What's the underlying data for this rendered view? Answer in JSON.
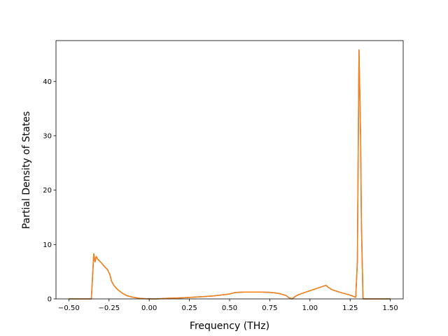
{
  "chart_data": {
    "type": "line",
    "title": "",
    "xlabel": "Frequency (THz)",
    "ylabel": "Partial Density of States",
    "xlim": [
      -0.58,
      1.58
    ],
    "ylim": [
      0,
      47.5
    ],
    "xticks": [
      -0.5,
      -0.25,
      0.0,
      0.25,
      0.5,
      0.75,
      1.0,
      1.25,
      1.5
    ],
    "xtick_labels": [
      "−0.50",
      "−0.25",
      "0.00",
      "0.25",
      "0.50",
      "0.75",
      "1.00",
      "1.25",
      "1.50"
    ],
    "yticks": [
      0,
      10,
      20,
      30,
      40
    ],
    "ytick_labels": [
      "0",
      "10",
      "20",
      "30",
      "40"
    ],
    "grid": false,
    "legend": "none",
    "series": [
      {
        "color": "#1f77b4",
        "x": [
          -0.5,
          -0.36,
          -0.345,
          -0.337,
          -0.33,
          -0.32,
          -0.3,
          -0.28,
          -0.26,
          -0.245,
          -0.235,
          -0.22,
          -0.2,
          -0.17,
          -0.14,
          -0.1,
          -0.06,
          -0.03,
          0.0,
          0.05,
          0.1,
          0.2,
          0.3,
          0.4,
          0.5,
          0.53,
          0.55,
          0.6,
          0.7,
          0.75,
          0.8,
          0.85,
          0.87,
          0.89,
          0.91,
          0.93,
          0.96,
          1.0,
          1.05,
          1.1,
          1.115,
          1.13,
          1.15,
          1.2,
          1.25,
          1.285,
          1.295,
          1.305,
          1.315,
          1.32,
          1.33,
          1.34,
          1.5
        ],
        "y": [
          0,
          0,
          8.3,
          6.8,
          7.8,
          7.3,
          6.7,
          6.0,
          5.4,
          4.5,
          3.3,
          2.5,
          1.8,
          1.1,
          0.6,
          0.3,
          0.1,
          0.05,
          0,
          0,
          0.1,
          0.2,
          0.35,
          0.55,
          0.9,
          1.15,
          1.2,
          1.25,
          1.25,
          1.2,
          1.05,
          0.65,
          0.2,
          0,
          0.5,
          0.8,
          1.1,
          1.5,
          2.0,
          2.5,
          2.1,
          1.8,
          1.55,
          1.1,
          0.7,
          0.3,
          7.0,
          45.8,
          30.0,
          14.0,
          0,
          0,
          0
        ]
      },
      {
        "color": "#ff7f0e",
        "x": [
          -0.5,
          -0.36,
          -0.345,
          -0.337,
          -0.33,
          -0.32,
          -0.3,
          -0.28,
          -0.26,
          -0.245,
          -0.235,
          -0.22,
          -0.2,
          -0.17,
          -0.14,
          -0.1,
          -0.06,
          -0.03,
          0.0,
          0.05,
          0.1,
          0.2,
          0.3,
          0.4,
          0.5,
          0.53,
          0.55,
          0.6,
          0.7,
          0.75,
          0.8,
          0.85,
          0.87,
          0.89,
          0.91,
          0.93,
          0.96,
          1.0,
          1.05,
          1.1,
          1.115,
          1.13,
          1.15,
          1.2,
          1.25,
          1.285,
          1.295,
          1.305,
          1.315,
          1.32,
          1.33,
          1.34,
          1.5
        ],
        "y": [
          0,
          0,
          8.3,
          6.8,
          7.8,
          7.3,
          6.7,
          6.0,
          5.4,
          4.5,
          3.3,
          2.5,
          1.8,
          1.1,
          0.6,
          0.3,
          0.1,
          0.05,
          0,
          0,
          0.1,
          0.2,
          0.35,
          0.55,
          0.9,
          1.15,
          1.2,
          1.25,
          1.25,
          1.2,
          1.05,
          0.65,
          0.2,
          0,
          0.5,
          0.8,
          1.1,
          1.5,
          2.0,
          2.5,
          2.1,
          1.8,
          1.55,
          1.1,
          0.7,
          0.3,
          7.0,
          45.8,
          30.0,
          14.0,
          0,
          0,
          0
        ]
      }
    ]
  }
}
